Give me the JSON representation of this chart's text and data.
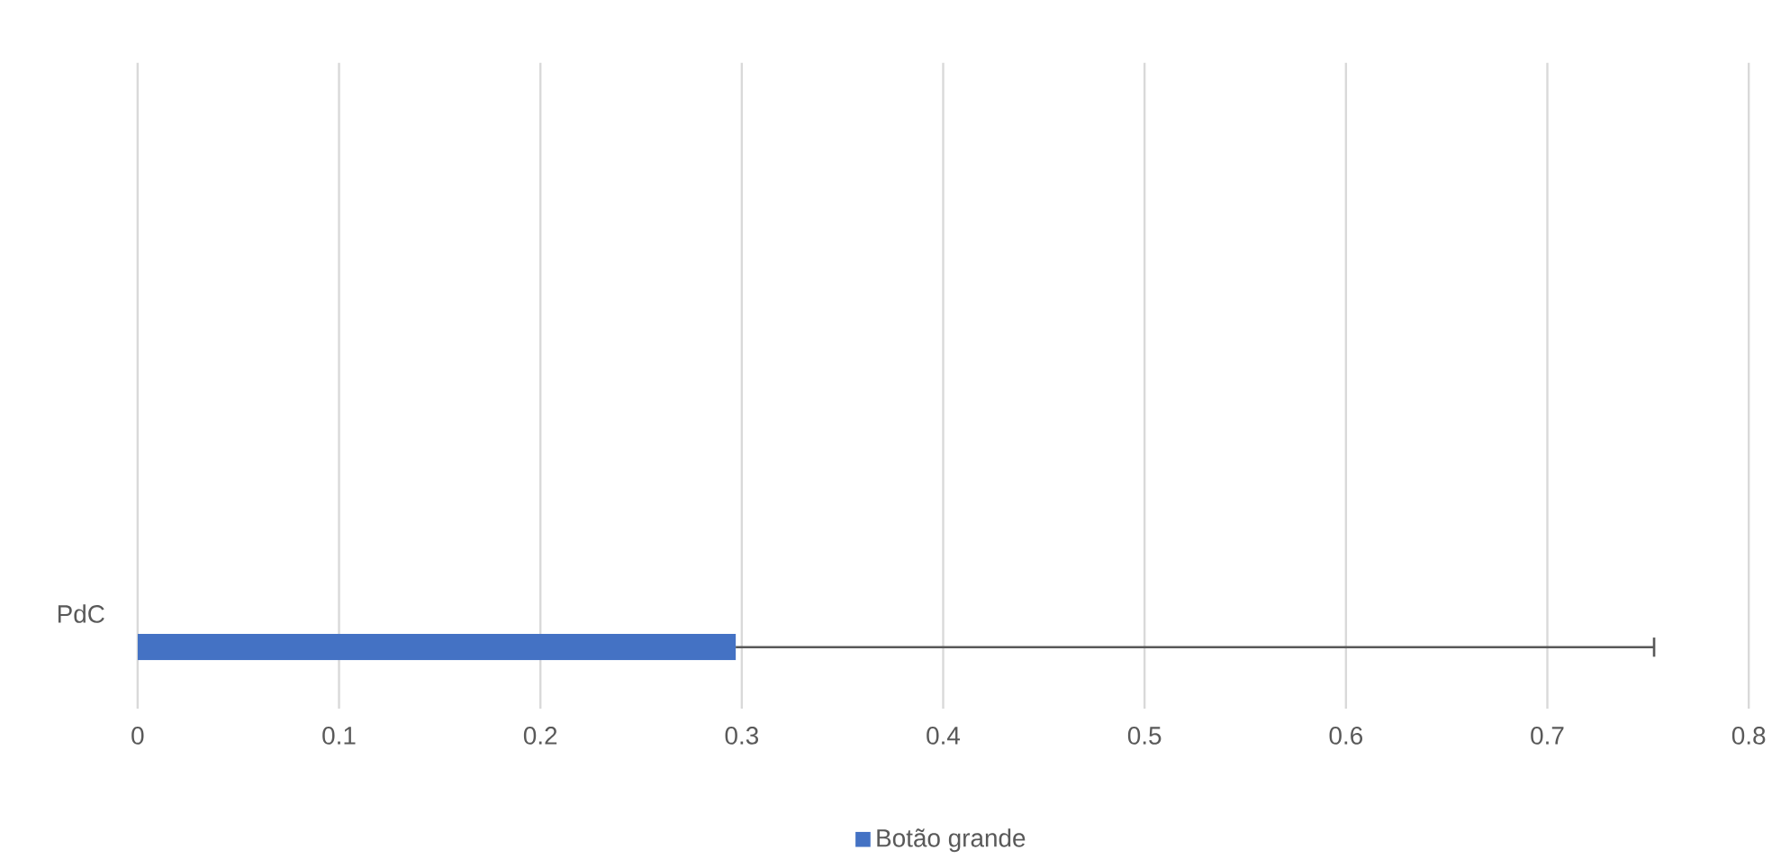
{
  "chart_data": {
    "type": "bar",
    "orientation": "horizontal",
    "categories": [
      "PdC"
    ],
    "series": [
      {
        "name": "Botão grande",
        "color": "#4472c4",
        "values": [
          0.297
        ],
        "errors": [
          [
            0.297,
            0.753
          ]
        ]
      }
    ],
    "xlim": [
      0,
      0.8
    ],
    "xticks": [
      0,
      0.1,
      0.2,
      0.3,
      0.4,
      0.5,
      0.6,
      0.7,
      0.8
    ],
    "grid": "x",
    "legend": "bottom"
  }
}
